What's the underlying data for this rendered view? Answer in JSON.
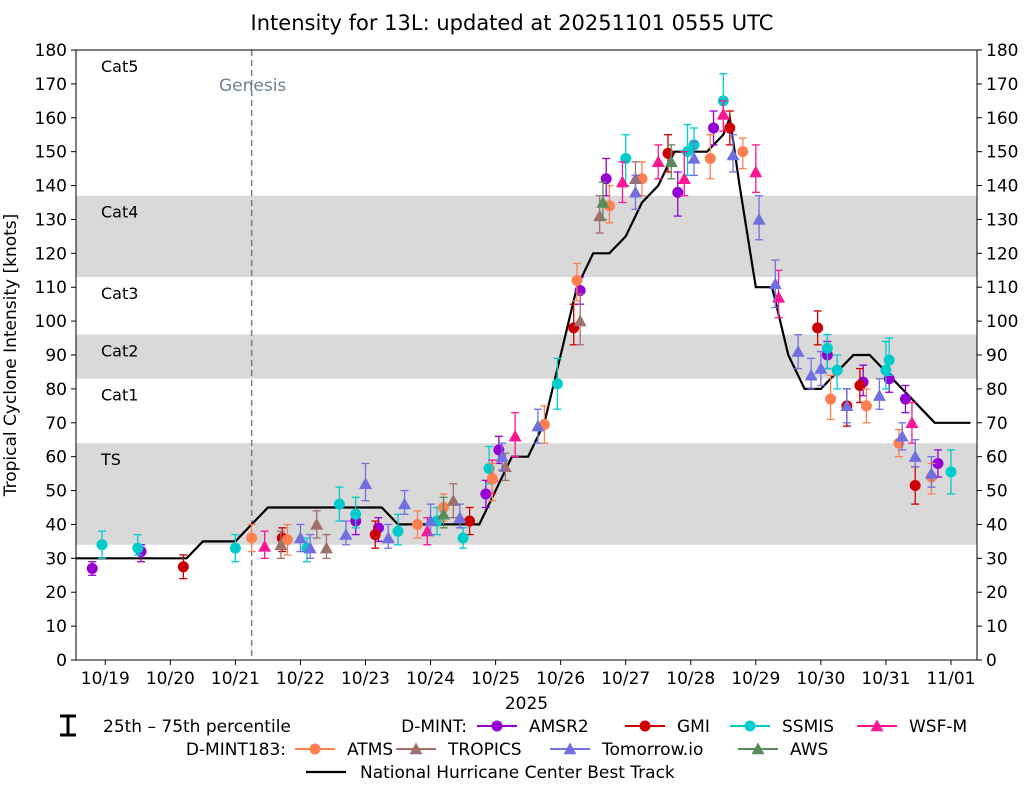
{
  "chart_data": {
    "type": "scatter",
    "title": "Intensity for 13L: updated at 20251101 0555 UTC",
    "ylabel": "Tropical Cyclone Intensity [knots]",
    "xlabel": "2025",
    "ylim": [
      0,
      180
    ],
    "xlim": [
      18.55,
      32.4
    ],
    "yticks": [
      0,
      10,
      20,
      30,
      40,
      50,
      60,
      70,
      80,
      90,
      100,
      110,
      120,
      130,
      140,
      150,
      160,
      170,
      180
    ],
    "ytick_labels": [
      "0",
      "10",
      "20",
      "30",
      "40",
      "50",
      "60",
      "70",
      "80",
      "90",
      "100",
      "110",
      "120",
      "130",
      "140",
      "150",
      "160",
      "170",
      "180"
    ],
    "xticks": [
      19,
      20,
      21,
      22,
      23,
      24,
      25,
      26,
      27,
      28,
      29,
      30,
      31,
      32
    ],
    "xtick_labels": [
      "10/19",
      "10/20",
      "10/21",
      "10/22",
      "10/23",
      "10/24",
      "10/25",
      "10/26",
      "10/27",
      "10/28",
      "10/29",
      "10/30",
      "10/31",
      "11/01"
    ],
    "grid": false,
    "legend_position": "bottom",
    "category_bands": [
      {
        "label": "Cat5",
        "range": [
          137,
          180
        ],
        "shaded": false
      },
      {
        "label": "Cat4",
        "range": [
          113,
          137
        ],
        "shaded": true
      },
      {
        "label": "Cat3",
        "range": [
          96,
          113
        ],
        "shaded": false
      },
      {
        "label": "Cat2",
        "range": [
          83,
          96
        ],
        "shaded": true
      },
      {
        "label": "Cat1",
        "range": [
          64,
          83
        ],
        "shaded": false
      },
      {
        "label": "TS",
        "range": [
          34,
          64
        ],
        "shaded": true
      }
    ],
    "genesis": {
      "label": "Genesis",
      "x": 21.25
    },
    "colors": {
      "band": "#d9d9d9",
      "best_track": "#000000",
      "genesis": "#708090",
      "errorbar": "#000000"
    },
    "legend": {
      "percentile_label": "25th – 75th percentile",
      "dmint_label": "D-MINT:",
      "dmint183_label": "D-MINT183:",
      "best_track_label": "National Hurricane Center Best Track"
    },
    "best_track": {
      "name": "National Hurricane Center Best Track",
      "x": [
        18.55,
        19.0,
        19.5,
        20.0,
        20.25,
        20.5,
        20.75,
        21.0,
        21.25,
        21.5,
        21.75,
        22.0,
        22.25,
        22.5,
        22.75,
        23.0,
        23.25,
        23.5,
        23.75,
        24.0,
        24.25,
        24.5,
        24.75,
        25.0,
        25.25,
        25.5,
        25.75,
        26.0,
        26.25,
        26.5,
        26.75,
        27.0,
        27.25,
        27.5,
        27.75,
        28.0,
        28.25,
        28.5,
        28.6,
        28.75,
        29.0,
        29.25,
        29.5,
        29.75,
        30.0,
        30.25,
        30.5,
        30.75,
        31.0,
        31.25,
        31.5,
        31.75,
        32.0,
        32.3
      ],
      "y": [
        30,
        30,
        30,
        30,
        30,
        35,
        35,
        35,
        40,
        45,
        45,
        45,
        45,
        45,
        45,
        45,
        45,
        40,
        40,
        40,
        40,
        40,
        40,
        50,
        60,
        60,
        70,
        90,
        110,
        120,
        120,
        125,
        135,
        140,
        150,
        150,
        150,
        155,
        160,
        140,
        110,
        110,
        90,
        80,
        80,
        85,
        90,
        90,
        85,
        80,
        75,
        70,
        70,
        70
      ]
    },
    "series": [
      {
        "name": "AMSR2",
        "group": "D-MINT",
        "marker": "circle",
        "color": "#9400d3",
        "x": [
          18.8,
          19.55,
          22.85,
          23.2,
          24.85,
          25.05,
          26.3,
          26.7,
          27.8,
          28.35,
          30.1,
          30.65,
          31.05,
          31.3,
          31.8
        ],
        "y": [
          27,
          32,
          41,
          39,
          49,
          62,
          109,
          142,
          138,
          157,
          90,
          82,
          83,
          77,
          58
        ],
        "q25": [
          25,
          29,
          37,
          35,
          45,
          58,
          105,
          137,
          131,
          152,
          86,
          78,
          79,
          73,
          54
        ],
        "q75": [
          29,
          34,
          44,
          42,
          53,
          66,
          113,
          148,
          144,
          162,
          94,
          87,
          88,
          81,
          62
        ]
      },
      {
        "name": "GMI",
        "group": "D-MINT",
        "marker": "circle",
        "color": "#cc0000",
        "x": [
          20.2,
          21.72,
          23.15,
          24.6,
          26.2,
          27.65,
          28.6,
          29.95,
          30.4,
          30.6,
          31.45
        ],
        "y": [
          27.5,
          36,
          37,
          41,
          98,
          149.5,
          157,
          98,
          75,
          81,
          51.5
        ],
        "q25": [
          24,
          32,
          33,
          37,
          93,
          144,
          152,
          93,
          69,
          76,
          46
        ],
        "q75": [
          31,
          39,
          41,
          45,
          105,
          155,
          162,
          103,
          80,
          86,
          57
        ],
        "marker_only": [
          false,
          false,
          false,
          false,
          false,
          false,
          false,
          false,
          false,
          false,
          false
        ]
      },
      {
        "name": "SSMIS",
        "group": "D-MINT",
        "marker": "circle",
        "color": "#00cccc",
        "x": [
          18.95,
          19.5,
          21.0,
          22.1,
          22.6,
          22.85,
          23.5,
          24.1,
          24.5,
          24.9,
          25.95,
          27.0,
          27.95,
          28.05,
          28.5,
          30.1,
          30.25,
          31.0,
          31.05,
          32.0
        ],
        "y": [
          34,
          33,
          33,
          33,
          46,
          43,
          38,
          41,
          36,
          56.5,
          81.5,
          148,
          150,
          152,
          165,
          92,
          85.5,
          85.5,
          88.5,
          55.5
        ],
        "q25": [
          30,
          31,
          29,
          29,
          41,
          39,
          34,
          37,
          33,
          52,
          74,
          140,
          143,
          147,
          160,
          86,
          80,
          80,
          84,
          49
        ],
        "q75": [
          38,
          37,
          37,
          36,
          51,
          48,
          43,
          45,
          39,
          63,
          89,
          155,
          158,
          157,
          173,
          96,
          90,
          94,
          95,
          62
        ]
      },
      {
        "name": "WSF-M",
        "group": "D-MINT",
        "marker": "triangle",
        "color": "#ff1493",
        "x": [
          21.45,
          23.95,
          24.95,
          25.3,
          26.95,
          27.5,
          27.9,
          28.5,
          29.0,
          29.35,
          31.4
        ],
        "y": [
          33.5,
          38,
          54,
          66,
          141,
          147,
          142,
          161,
          144,
          107,
          70
        ],
        "q25": [
          30,
          34,
          49,
          60,
          135,
          142,
          137,
          156,
          138,
          101,
          64
        ],
        "q75": [
          38,
          42,
          59,
          73,
          147,
          152,
          150,
          165,
          152,
          115,
          76
        ]
      },
      {
        "name": "ATMS",
        "group": "D-MINT183",
        "marker": "circle",
        "color": "#ff7f50",
        "x": [
          21.25,
          21.8,
          23.8,
          24.2,
          24.95,
          25.75,
          26.25,
          26.75,
          27.25,
          28.3,
          28.8,
          30.15,
          30.7,
          31.2,
          31.7
        ],
        "y": [
          36,
          35.5,
          40,
          45,
          53.5,
          69.5,
          112,
          134,
          142,
          148,
          150,
          77,
          75,
          64,
          54
        ],
        "q25": [
          32,
          31,
          36,
          41,
          47,
          64,
          106,
          129,
          137,
          142,
          145,
          71,
          70,
          60,
          49
        ],
        "q75": [
          40,
          40,
          44,
          49,
          58,
          75,
          117,
          140,
          147,
          155,
          154,
          84,
          80,
          68,
          58
        ]
      },
      {
        "name": "TROPICS",
        "group": "D-MINT183",
        "marker": "triangle",
        "color": "#a0706a",
        "x": [
          21.7,
          22.25,
          22.4,
          24.35,
          25.15,
          26.3,
          26.6,
          27.15
        ],
        "y": [
          34,
          40,
          33,
          47,
          57,
          100,
          131,
          142
        ],
        "q25": [
          30,
          36,
          30,
          42,
          53,
          93,
          126,
          137
        ],
        "q75": [
          38,
          44,
          37,
          52,
          61,
          108,
          137,
          147
        ]
      },
      {
        "name": "Tomorrow.io",
        "group": "D-MINT183",
        "marker": "triangle",
        "color": "#7070e0",
        "x": [
          22.0,
          22.15,
          22.7,
          23.0,
          23.35,
          23.6,
          24.0,
          24.45,
          25.1,
          25.65,
          27.15,
          28.05,
          28.65,
          29.05,
          29.3,
          29.65,
          29.85,
          30.0,
          30.4,
          30.9,
          31.25,
          31.45,
          31.7
        ],
        "y": [
          36,
          33,
          37,
          52,
          36,
          46,
          41,
          42,
          60,
          69,
          138,
          148,
          149,
          130,
          111,
          91,
          84,
          86,
          75,
          78,
          66,
          60,
          55
        ],
        "q25": [
          32,
          30,
          34,
          47,
          33,
          43,
          37,
          39,
          56,
          64,
          133,
          143,
          144,
          124,
          104,
          86,
          80,
          81,
          70,
          74,
          62,
          57,
          51
        ],
        "q75": [
          40,
          37,
          41,
          58,
          40,
          50,
          46,
          46,
          64,
          74,
          143,
          153,
          155,
          137,
          118,
          96,
          89,
          91,
          80,
          83,
          70,
          65,
          60
        ]
      },
      {
        "name": "AWS",
        "group": "D-MINT183",
        "marker": "triangle",
        "color": "#5a8a5a",
        "x": [
          24.2,
          26.65,
          27.7
        ],
        "y": [
          43,
          135,
          147
        ],
        "q25": [
          39,
          130,
          142
        ],
        "q75": [
          48,
          141,
          152
        ]
      }
    ]
  }
}
